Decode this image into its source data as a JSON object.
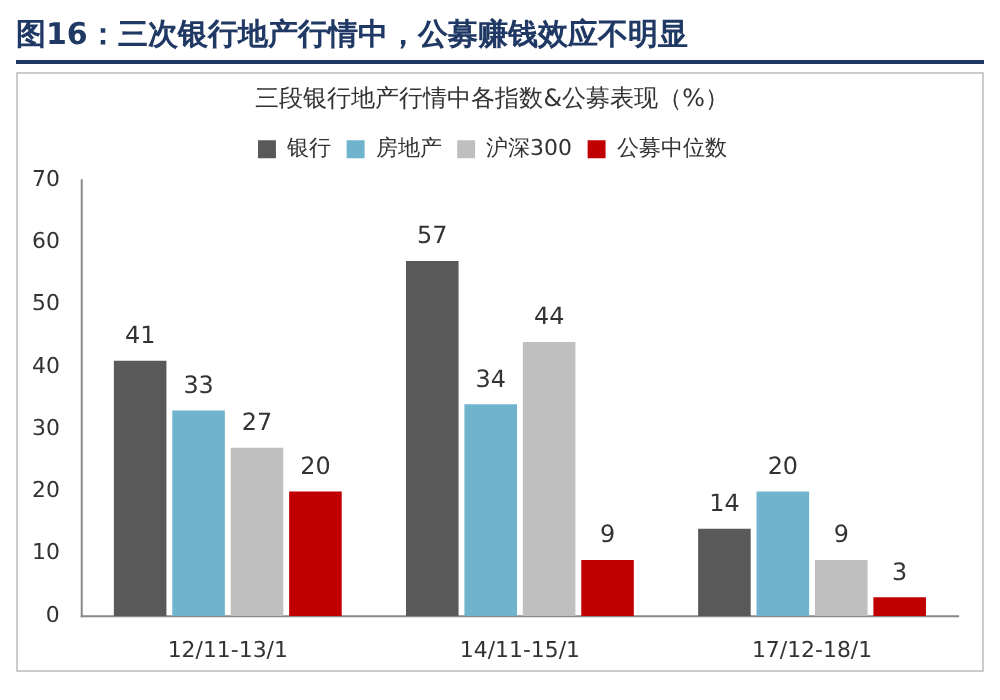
{
  "chart_data": {
    "type": "bar",
    "title": "图16：三次银行地产行情中，公募赚钱效应不明显",
    "subtitle": "三段银行地产行情中各指数&公募表现（%）",
    "categories": [
      "12/11-13/1",
      "14/11-15/1",
      "17/12-18/1"
    ],
    "series": [
      {
        "name": "银行",
        "color": "#595959",
        "values": [
          41,
          57,
          14
        ]
      },
      {
        "name": "房地产",
        "color": "#6fb3cc",
        "values": [
          33,
          34,
          20
        ]
      },
      {
        "name": "沪深300",
        "color": "#bfbfbf",
        "values": [
          27,
          44,
          9
        ]
      },
      {
        "name": "公募中位数",
        "color": "#c00000",
        "values": [
          20,
          9,
          3
        ]
      }
    ],
    "ylim": [
      0,
      70
    ],
    "yticks": [
      0,
      10,
      20,
      30,
      40,
      50,
      60,
      70
    ],
    "grid": false,
    "legend": "top",
    "data_labels": true
  }
}
